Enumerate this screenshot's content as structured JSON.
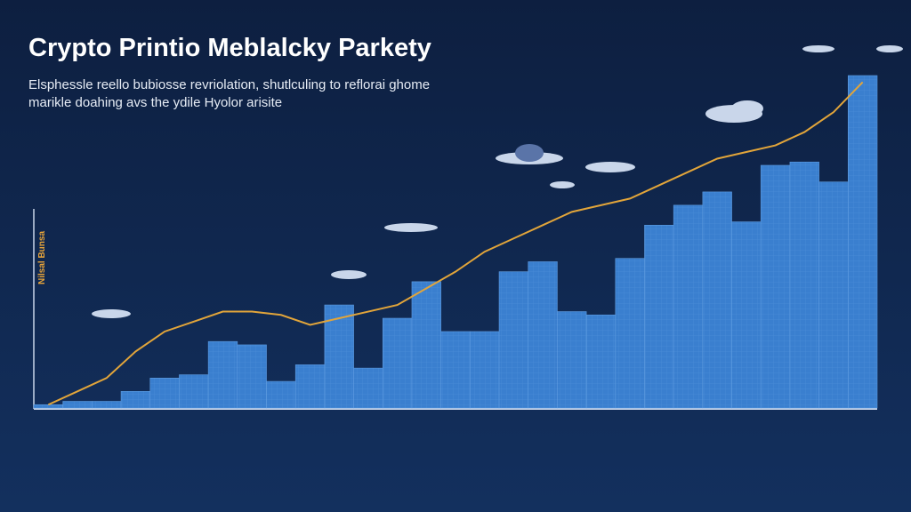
{
  "chart_data": {
    "type": "bar",
    "title": "Crypto Printio Meblalcky Parkety",
    "subtitle": [
      "Elsphessle reello bubiosse revriolation, shutlculing to reflorai ghome",
      "marikle doahing avs the ydile Hyolor arisite"
    ],
    "y_label": "Nilsal Bunsa",
    "ylim": [
      0,
      100
    ],
    "series": [
      {
        "name": null,
        "type": "bar",
        "color": "#3a7fcf",
        "values": [
          1,
          2,
          2,
          5,
          9,
          10,
          20,
          19,
          8,
          13,
          31,
          12,
          27,
          38,
          23,
          23,
          41,
          44,
          29,
          28,
          45,
          55,
          61,
          65,
          56,
          73,
          74,
          68,
          100
        ]
      },
      {
        "name": null,
        "type": "line",
        "color": "#e2a53a",
        "values": [
          1,
          5,
          9,
          17,
          23,
          26,
          29,
          29,
          28,
          25,
          27,
          29,
          31,
          36,
          41,
          47,
          51,
          55,
          59,
          61,
          63,
          67,
          71,
          75,
          77,
          79,
          83,
          89,
          98
        ]
      }
    ]
  }
}
